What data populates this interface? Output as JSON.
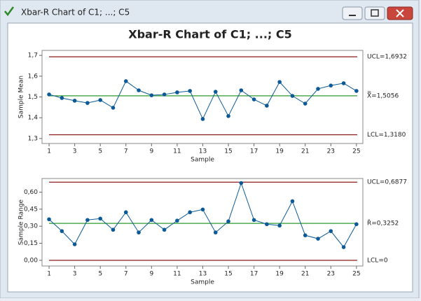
{
  "window": {
    "title": "Xbar-R Chart of C1; ...; C5"
  },
  "chart_data": [
    {
      "type": "line",
      "title": "Xbar-R Chart of C1; ...; C5",
      "x_label": "Sample",
      "y_label": "Sample Mean",
      "x": [
        1,
        2,
        3,
        4,
        5,
        6,
        7,
        8,
        9,
        10,
        11,
        12,
        13,
        14,
        15,
        16,
        17,
        18,
        19,
        20,
        21,
        22,
        23,
        24,
        25
      ],
      "series": [
        {
          "color": "#0b5a97",
          "values": [
            1.512,
            1.495,
            1.482,
            1.471,
            1.485,
            1.448,
            1.576,
            1.532,
            1.508,
            1.512,
            1.522,
            1.529,
            1.394,
            1.525,
            1.408,
            1.532,
            1.488,
            1.458,
            1.572,
            1.505,
            1.468,
            1.539,
            1.555,
            1.566,
            1.529
          ]
        }
      ],
      "limits": [
        {
          "value": 1.6932,
          "label": "UCL=1,6932",
          "color": "#8b1a1a"
        },
        {
          "value": 1.5056,
          "label": "X̿=1,5056",
          "color": "#2e9a2e"
        },
        {
          "value": 1.318,
          "label": "LCL=1,3180",
          "color": "#8b1a1a"
        }
      ],
      "xlim": [
        0.45,
        25.5
      ],
      "xticks": [
        1,
        3,
        5,
        7,
        9,
        11,
        13,
        15,
        17,
        19,
        21,
        23,
        25
      ],
      "ylim": [
        1.276,
        1.724
      ],
      "yticks": [
        {
          "value": 1.3,
          "label": "1,3"
        },
        {
          "value": 1.4,
          "label": "1,4"
        },
        {
          "value": 1.5,
          "label": "1,5"
        },
        {
          "value": 1.6,
          "label": "1,6"
        },
        {
          "value": 1.7,
          "label": "1,7"
        }
      ]
    },
    {
      "type": "line",
      "x_label": "Sample",
      "y_label": "Sample Range",
      "x": [
        1,
        2,
        3,
        4,
        5,
        6,
        7,
        8,
        9,
        10,
        11,
        12,
        13,
        14,
        15,
        16,
        17,
        18,
        19,
        20,
        21,
        22,
        23,
        24,
        25
      ],
      "series": [
        {
          "color": "#0b5a97",
          "values": [
            0.361,
            0.257,
            0.141,
            0.355,
            0.367,
            0.269,
            0.423,
            0.245,
            0.355,
            0.269,
            0.349,
            0.423,
            0.447,
            0.245,
            0.343,
            0.68,
            0.355,
            0.318,
            0.306,
            0.52,
            0.22,
            0.19,
            0.257,
            0.116,
            0.318
          ]
        }
      ],
      "limits": [
        {
          "value": 0.6877,
          "label": "UCL=0,6877",
          "color": "#8b1a1a"
        },
        {
          "value": 0.3252,
          "label": "R̄=0,3252",
          "color": "#2e9a2e"
        },
        {
          "value": 0,
          "label": "LCL=0",
          "color": "#8b1a1a"
        }
      ],
      "xlim": [
        0.45,
        25.5
      ],
      "xticks": [
        1,
        3,
        5,
        7,
        9,
        11,
        13,
        15,
        17,
        19,
        21,
        23,
        25
      ],
      "ylim": [
        -0.05,
        0.72
      ],
      "yticks": [
        {
          "value": 0,
          "label": "0,00"
        },
        {
          "value": 0.15,
          "label": "0,15"
        },
        {
          "value": 0.3,
          "label": "0,30"
        },
        {
          "value": 0.45,
          "label": "0,45"
        },
        {
          "value": 0.6,
          "label": "0,60"
        }
      ]
    }
  ]
}
